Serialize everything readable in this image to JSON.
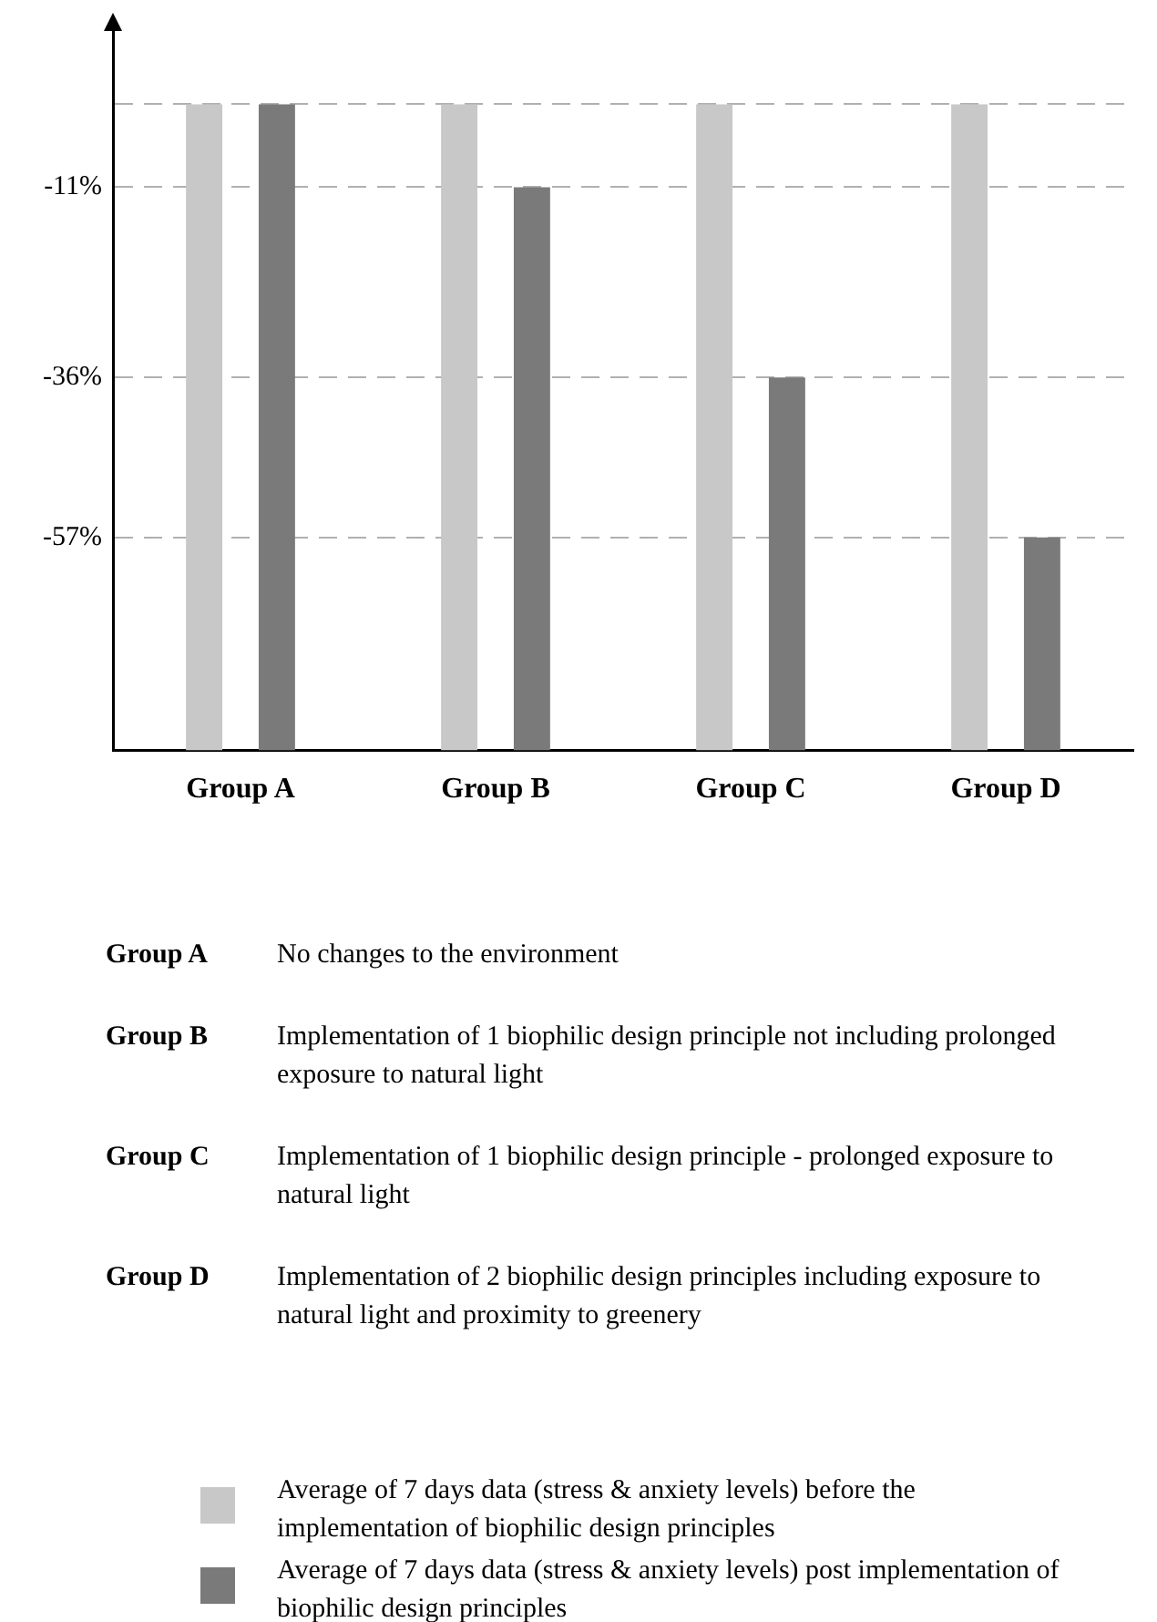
{
  "chart_data": {
    "type": "bar",
    "categories": [
      "Group A",
      "Group B",
      "Group C",
      "Group D"
    ],
    "series": [
      {
        "name": "Average of 7 days data (stress & anxiety levels) before the implementation of biophilic design principles",
        "color": "#c8c8c8",
        "base": [
          -85,
          -85,
          -85,
          -85
        ],
        "values": [
          85,
          85,
          85,
          85
        ]
      },
      {
        "name": "Average of 7 days data (stress & anxiety levels) post implementation of biophilic design principles",
        "color": "#7a7a7a",
        "base": [
          -85,
          -85,
          -85,
          -85
        ],
        "values": [
          85,
          74,
          49,
          28
        ]
      }
    ],
    "ylim": [
      -85,
      10
    ],
    "yticks": [
      {
        "value": 0,
        "label": null
      },
      {
        "value": -11,
        "label": "-11%"
      },
      {
        "value": -36,
        "label": "-36%"
      },
      {
        "value": -57,
        "label": "-57%"
      }
    ],
    "annotations": [
      "Group A",
      "No changes to the environment",
      "Group B",
      "Implementation of 1 biophilic design principle not including prolonged exposure to natural light",
      "Group C",
      "Implementation of 1 biophilic design principle - prolonged exposure to natural light",
      "Group D",
      "Implementation of 2 biophilic design principles including exposure to natural light and proximity to greenery"
    ],
    "grid": "y",
    "line_style": "dashed",
    "legend": "bottom"
  }
}
